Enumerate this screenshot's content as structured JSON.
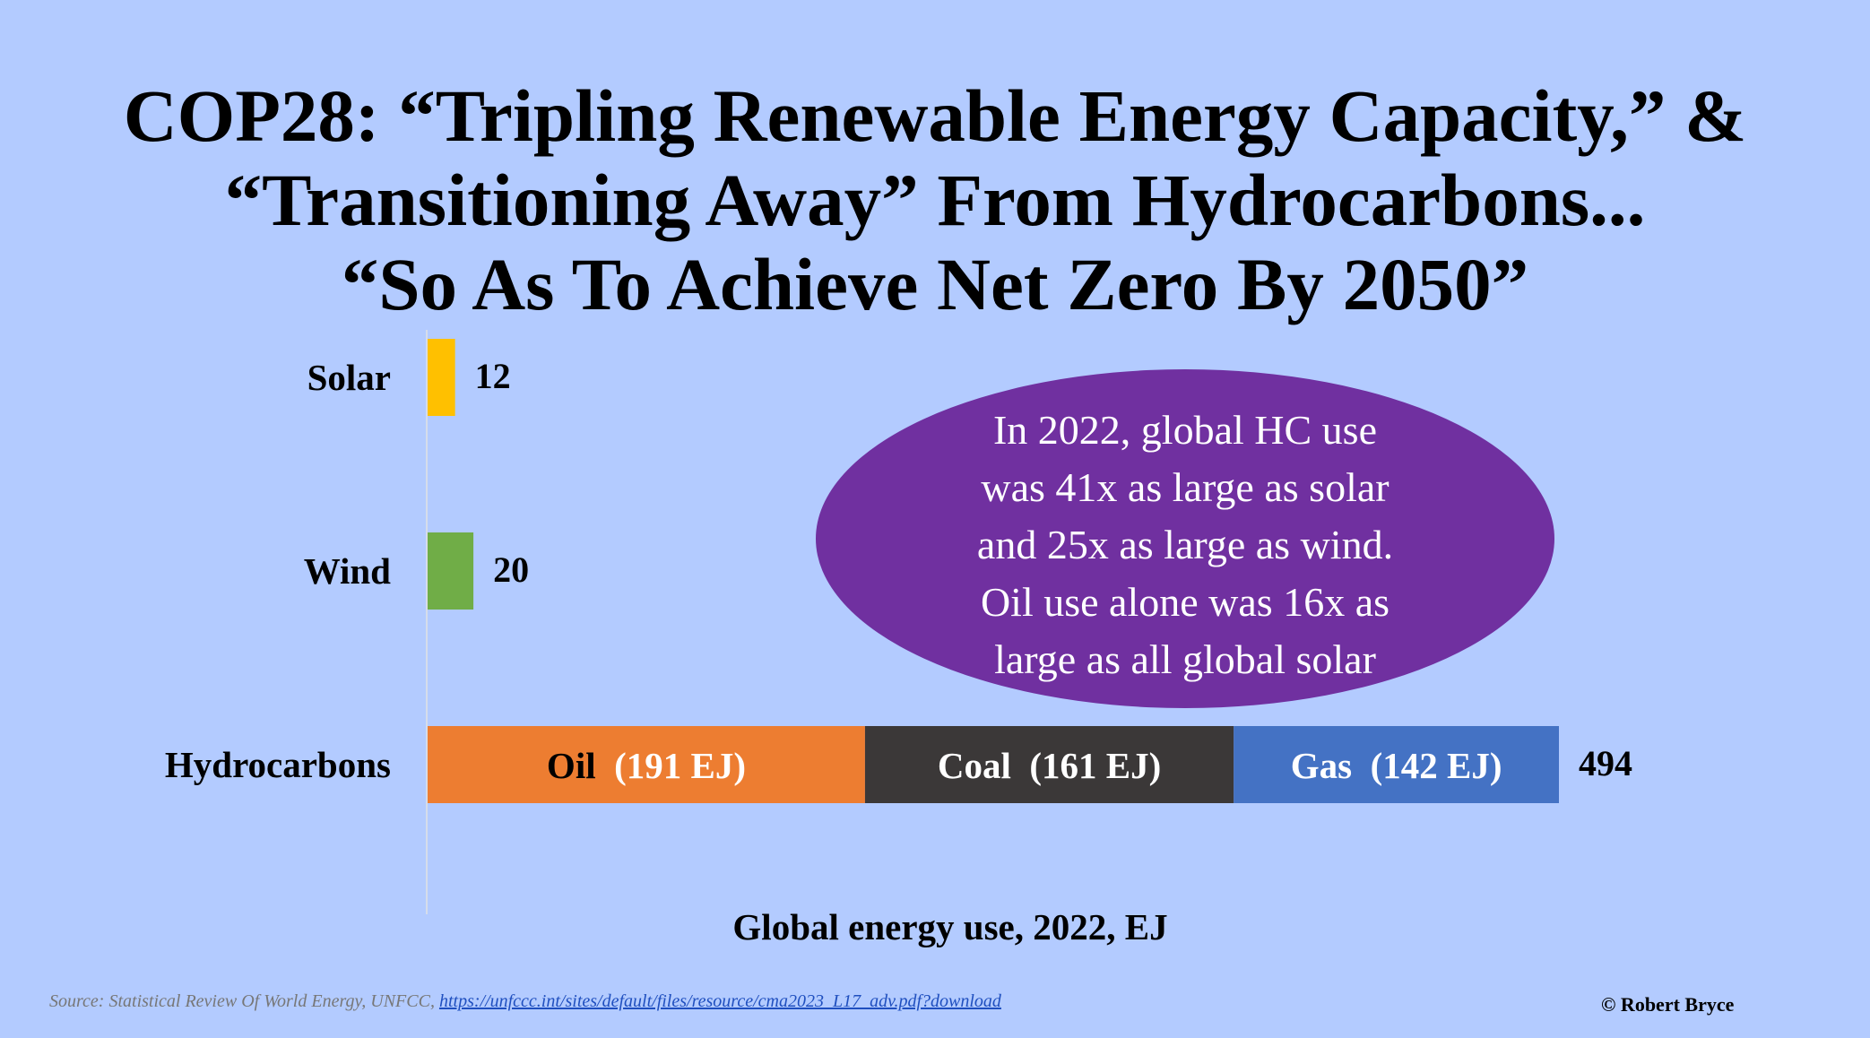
{
  "title": {
    "line1": "COP28: “Tripling Renewable Energy Capacity,” &",
    "line2": "“Transitioning Away” From Hydrocarbons...",
    "line3": "“So As To Achieve Net Zero By 2050”"
  },
  "callout": {
    "lines": [
      "In 2022, global HC use",
      "was 41x as large as solar",
      "and 25x as large as wind.",
      "Oil use alone was 16x as",
      "large as all global solar"
    ],
    "color": "#7030a0"
  },
  "source": {
    "text": "Source: Statistical Review Of World Energy, UNFCC, ",
    "link": "https://unfccc.int/sites/default/files/resource/cma2023_L17_adv.pdf?download"
  },
  "credit": "© Robert Bryce",
  "chart_data": {
    "type": "bar",
    "orientation": "horizontal",
    "stacked": true,
    "xlabel": "Global energy use, 2022, EJ",
    "xlim": [
      0,
      494
    ],
    "grid": false,
    "categories": [
      {
        "label": "Solar",
        "total": "12",
        "segments": [
          {
            "value": 12,
            "label": "",
            "color": "#ffc000"
          }
        ]
      },
      {
        "label": "Wind",
        "total": "20",
        "segments": [
          {
            "value": 20,
            "label": "",
            "color": "#70ad47"
          }
        ]
      },
      {
        "label": "Hydrocarbons",
        "total": "494",
        "segments": [
          {
            "value": 191,
            "name": "Oil",
            "label": "(191 EJ)",
            "color": "#ed7d31",
            "name_color": "#000000",
            "label_color": "#ffffff"
          },
          {
            "value": 161,
            "name": "Coal",
            "label": "(161 EJ)",
            "color": "#3b3838",
            "name_color": "#ffffff",
            "label_color": "#ffffff"
          },
          {
            "value": 142,
            "name": "Gas",
            "label": "(142 EJ)",
            "color": "#4472c4",
            "name_color": "#ffffff",
            "label_color": "#ffffff"
          }
        ]
      }
    ]
  }
}
